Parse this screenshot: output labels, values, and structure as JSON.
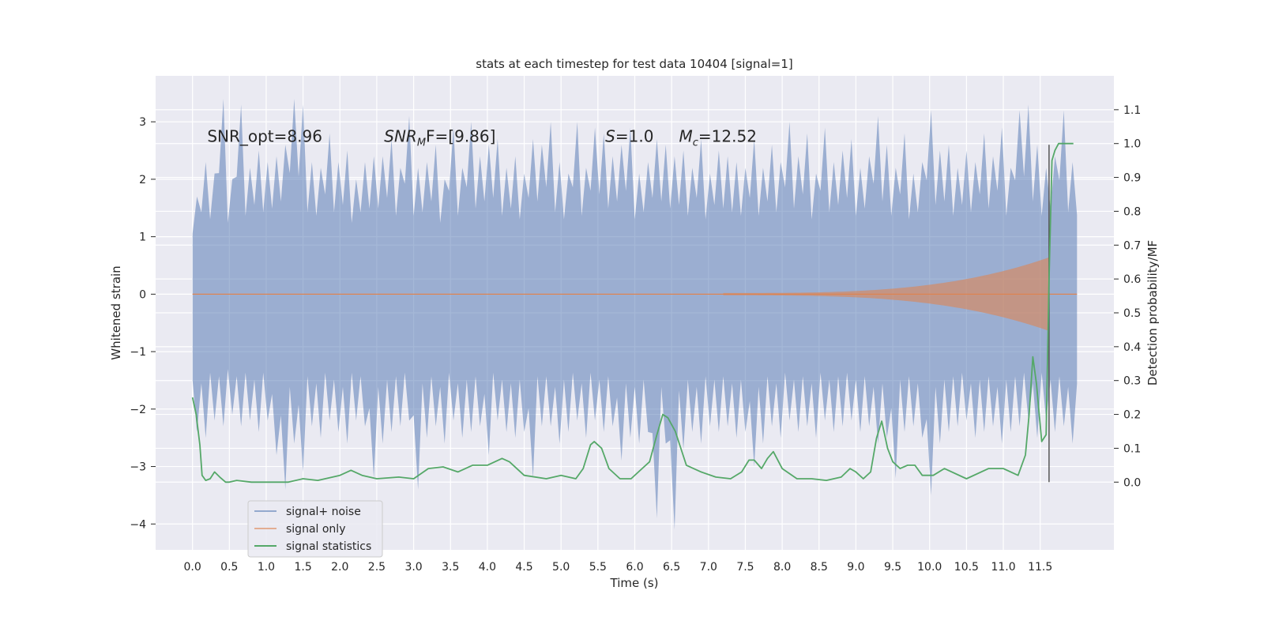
{
  "chart_data": {
    "type": "line",
    "title": "stats at each timestep for test data 10404 [signal=1]",
    "xlabel": "Time (s)",
    "ylabel": "Whitened strain",
    "ylabel_right": "Detection probability/MF",
    "xlim": [
      -0.5,
      12.5
    ],
    "ylim": [
      -4.45,
      3.8
    ],
    "ylim_right": [
      -0.2,
      1.2
    ],
    "x_ticks": [
      0.0,
      0.5,
      1.0,
      1.5,
      2.0,
      2.5,
      3.0,
      3.5,
      4.0,
      4.5,
      5.0,
      5.5,
      6.0,
      6.5,
      7.0,
      7.5,
      8.0,
      8.5,
      9.0,
      9.5,
      10.0,
      10.5,
      11.0,
      11.5
    ],
    "x_tick_labels": [
      "0.0",
      "0.5",
      "1.0",
      "1.5",
      "2.0",
      "2.5",
      "3.0",
      "3.5",
      "4.0",
      "4.5",
      "5.0",
      "5.5",
      "6.0",
      "6.5",
      "7.0",
      "7.5",
      "8.0",
      "8.5",
      "9.0",
      "9.5",
      "10.0",
      "10.5",
      "11.0",
      "11.5"
    ],
    "y_ticks": [
      -4,
      -3,
      -2,
      -1,
      0,
      1,
      2,
      3
    ],
    "y_tick_labels": [
      "−4",
      "−3",
      "−2",
      "−1",
      "0",
      "1",
      "2",
      "3"
    ],
    "y_ticks_right": [
      0.0,
      0.1,
      0.2,
      0.3,
      0.4,
      0.5,
      0.6,
      0.7,
      0.8,
      0.9,
      1.0,
      1.1
    ],
    "y_tick_labels_right": [
      "0.0",
      "0.1",
      "0.2",
      "0.3",
      "0.4",
      "0.5",
      "0.6",
      "0.7",
      "0.8",
      "0.9",
      "1.0",
      "1.1"
    ],
    "grid": true,
    "legend_position": "lower-left",
    "annotations": [
      {
        "text": "SNR_opt=8.96",
        "x": 0.2,
        "y": 2.75
      },
      {
        "text": "SNR_MF=[9.86]",
        "x": 2.6,
        "y": 2.75
      },
      {
        "text": "S=1.0",
        "x": 5.6,
        "y": 2.75
      },
      {
        "text": "M_c=12.52",
        "x": 6.6,
        "y": 2.75
      }
    ],
    "vertical_marker_x": 11.62,
    "series": [
      {
        "name": "signal+ noise",
        "axis": "left",
        "color": "#4c72b0",
        "x_range": [
          0.0,
          12.0
        ],
        "upper_envelope": [
          1.7,
          2.3,
          2.1,
          3.4,
          2.0,
          3.3,
          2.2,
          2.5,
          2.3,
          2.4,
          2.6,
          3.4,
          3.3,
          2.3,
          2.2,
          2.8,
          2.3,
          2.5,
          2.0,
          2.3,
          2.4,
          2.4,
          2.7,
          2.2,
          3.1,
          2.2,
          2.3,
          2.6,
          2.0,
          2.9,
          2.2,
          3.0,
          2.4,
          2.6,
          2.7,
          2.2,
          2.4,
          2.1,
          2.7,
          2.6,
          3.0,
          2.3,
          2.1,
          3.0,
          2.2,
          2.9,
          2.8,
          2.4,
          2.6,
          2.9,
          2.1,
          2.3,
          2.7,
          2.6,
          2.4,
          2.5,
          2.2,
          2.7,
          2.1,
          2.5,
          2.4,
          2.3,
          2.2,
          2.7,
          2.2,
          2.6,
          2.3,
          3.0,
          2.4,
          2.8,
          2.1,
          2.9,
          2.3,
          2.5,
          2.7,
          2.2,
          2.4,
          3.1,
          2.6,
          2.2,
          2.8,
          2.1,
          2.3,
          3.2,
          2.5,
          2.6,
          2.2,
          2.5,
          2.3,
          2.8,
          2.4,
          2.9,
          2.2,
          3.2,
          3.3,
          2.6,
          2.2,
          2.4,
          3.2,
          2.3
        ],
        "lower_envelope": [
          -2.4,
          -2.5,
          -2.2,
          -2.3,
          -2.1,
          -2.3,
          -2.2,
          -2.4,
          -2.2,
          -2.8,
          -3.4,
          -2.6,
          -3.1,
          -2.3,
          -2.5,
          -2.2,
          -2.4,
          -2.6,
          -2.2,
          -2.3,
          -3.2,
          -2.6,
          -2.4,
          -2.3,
          -2.2,
          -3.4,
          -2.5,
          -2.3,
          -2.6,
          -2.2,
          -2.5,
          -2.4,
          -2.3,
          -2.8,
          -2.2,
          -2.4,
          -2.5,
          -2.4,
          -3.2,
          -2.3,
          -2.3,
          -2.6,
          -2.4,
          -2.2,
          -2.5,
          -2.2,
          -2.4,
          -2.3,
          -2.9,
          -2.5,
          -2.6,
          -2.4,
          -3.9,
          -2.6,
          -4.1,
          -2.7,
          -2.4,
          -2.6,
          -2.3,
          -2.4,
          -2.3,
          -2.5,
          -2.4,
          -3.0,
          -2.6,
          -2.3,
          -2.5,
          -2.2,
          -2.4,
          -2.3,
          -2.5,
          -2.2,
          -2.4,
          -2.3,
          -2.2,
          -2.4,
          -2.3,
          -2.6,
          -2.5,
          -3.2,
          -2.4,
          -2.3,
          -2.5,
          -3.5,
          -2.6,
          -2.4,
          -2.3,
          -2.2,
          -2.5,
          -2.4,
          -2.3,
          -2.6,
          -2.4,
          -2.3,
          -2.2,
          -2.5,
          -2.2,
          -2.4,
          -2.3,
          -2.6
        ]
      },
      {
        "name": "signal only",
        "axis": "left",
        "color": "#dd8452",
        "x_range": [
          0.0,
          12.0
        ],
        "chirp_start": 7.2,
        "chirp_peak_x": 11.62,
        "peak_amplitude": 0.62
      },
      {
        "name": "signal statistics",
        "axis": "right",
        "color": "#55a868",
        "x": [
          0.0,
          0.05,
          0.1,
          0.13,
          0.18,
          0.24,
          0.3,
          0.37,
          0.45,
          0.5,
          0.6,
          0.8,
          1.0,
          1.3,
          1.5,
          1.7,
          2.0,
          2.15,
          2.3,
          2.5,
          2.8,
          3.0,
          3.2,
          3.4,
          3.6,
          3.8,
          4.0,
          4.2,
          4.3,
          4.5,
          4.8,
          5.0,
          5.2,
          5.3,
          5.4,
          5.45,
          5.55,
          5.65,
          5.8,
          5.95,
          6.1,
          6.2,
          6.3,
          6.38,
          6.45,
          6.55,
          6.7,
          6.9,
          7.1,
          7.3,
          7.45,
          7.55,
          7.62,
          7.72,
          7.8,
          7.88,
          8.0,
          8.2,
          8.4,
          8.6,
          8.8,
          8.92,
          9.0,
          9.1,
          9.2,
          9.28,
          9.35,
          9.43,
          9.5,
          9.6,
          9.7,
          9.8,
          9.9,
          10.05,
          10.2,
          10.5,
          10.8,
          11.0,
          11.2,
          11.3,
          11.35,
          11.4,
          11.45,
          11.52,
          11.58,
          11.62,
          11.66,
          11.7,
          11.75,
          11.82,
          11.95
        ],
        "values": [
          0.25,
          0.2,
          0.11,
          0.02,
          0.005,
          0.01,
          0.03,
          0.015,
          0.0,
          0.0,
          0.005,
          0.0,
          0.0,
          0.0,
          0.01,
          0.005,
          0.02,
          0.035,
          0.02,
          0.01,
          0.015,
          0.01,
          0.04,
          0.045,
          0.03,
          0.05,
          0.05,
          0.07,
          0.06,
          0.02,
          0.01,
          0.02,
          0.01,
          0.04,
          0.11,
          0.12,
          0.1,
          0.04,
          0.01,
          0.01,
          0.04,
          0.06,
          0.14,
          0.2,
          0.19,
          0.15,
          0.05,
          0.03,
          0.015,
          0.01,
          0.03,
          0.065,
          0.065,
          0.04,
          0.07,
          0.09,
          0.04,
          0.01,
          0.01,
          0.005,
          0.015,
          0.04,
          0.03,
          0.01,
          0.03,
          0.13,
          0.18,
          0.1,
          0.06,
          0.04,
          0.05,
          0.05,
          0.02,
          0.02,
          0.04,
          0.01,
          0.04,
          0.04,
          0.02,
          0.08,
          0.2,
          0.37,
          0.29,
          0.12,
          0.14,
          0.6,
          0.95,
          0.98,
          1.0,
          1.0,
          1.0
        ]
      }
    ]
  }
}
